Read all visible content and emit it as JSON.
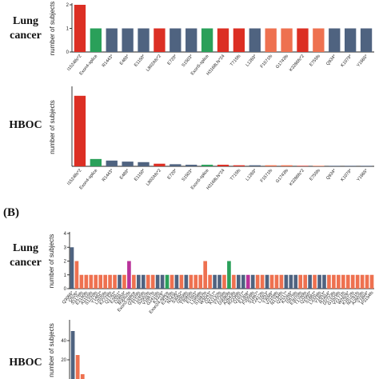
{
  "panel_b_label": "(B)",
  "colors": {
    "red": "#dc2f24",
    "green": "#2aa05a",
    "slate": "#4f6380",
    "orange": "#ee7150",
    "magenta": "#b9329a"
  },
  "chart_data": [
    {
      "type": "bar",
      "row_label": [
        "Lung",
        "cancer"
      ],
      "ylabel": "number of subjects",
      "ylim": [
        0,
        2
      ],
      "yticks": [
        "0",
        "1",
        "2"
      ],
      "categories": [
        "I1524lfs*2",
        "Exon4-splice",
        "R1443*",
        "E489*",
        "E1150*",
        "L802Afs*2",
        "E720*",
        "S1503*",
        "Exon5-splice",
        "H3168Lfs*24",
        "T715fs",
        "L1269*",
        "F1571fs",
        "G1743fs",
        "K3286fs*2",
        "E755fs",
        "Q934*",
        "K1079*",
        "Y1665*"
      ],
      "values": [
        2,
        1,
        1,
        1,
        1,
        1,
        1,
        1,
        1,
        1,
        1,
        1,
        1,
        1,
        1,
        1,
        1,
        1,
        1
      ],
      "colors": [
        "red",
        "green",
        "slate",
        "slate",
        "slate",
        "red",
        "slate",
        "slate",
        "green",
        "red",
        "red",
        "slate",
        "orange",
        "orange",
        "red",
        "orange",
        "slate",
        "slate",
        "slate"
      ]
    },
    {
      "type": "bar",
      "row_label": [
        "HBOC"
      ],
      "ylabel": "number of subjects",
      "ylim": [
        0,
        150
      ],
      "categories": [
        "I1524lfs*2",
        "Exon4-splice",
        "R1443*",
        "E489*",
        "E1150*",
        "L802Afs*2",
        "E720*",
        "S1503*",
        "Exon5-splice",
        "H3168Lfs*24",
        "T715fs",
        "L1269*",
        "F1571fs",
        "G1743fs",
        "K3286fs*2",
        "E755fs",
        "Q934*",
        "K1079*",
        "Y1665*"
      ],
      "values": [
        135,
        14,
        11,
        9,
        8,
        5,
        4,
        3,
        3,
        3,
        2,
        2,
        2,
        2,
        1,
        1,
        1,
        1,
        1
      ],
      "colors": [
        "red",
        "green",
        "slate",
        "slate",
        "slate",
        "red",
        "slate",
        "slate",
        "green",
        "red",
        "red",
        "slate",
        "orange",
        "orange",
        "red",
        "orange",
        "slate",
        "slate",
        "slate"
      ]
    },
    {
      "type": "bar",
      "row_label": [
        "Lung",
        "cancer"
      ],
      "ylabel": "number of subjects",
      "ylim": [
        0,
        4
      ],
      "yticks": [
        "0",
        "1",
        "2",
        "3",
        "4"
      ],
      "values": [
        3,
        2,
        1,
        1,
        1,
        1,
        1,
        1,
        1,
        1,
        1,
        1,
        2,
        1,
        1,
        1,
        1,
        1,
        1,
        1,
        1,
        1,
        1,
        1,
        1,
        1,
        1,
        1,
        2,
        1,
        1,
        1,
        1,
        2,
        1,
        1,
        1,
        1,
        1,
        1,
        1,
        1,
        1,
        1,
        1,
        1,
        1,
        1,
        1,
        1,
        1,
        1,
        1,
        1,
        1,
        1,
        1,
        1,
        1,
        1,
        1,
        1,
        1,
        1
      ],
      "colors": [
        "slate",
        "orange",
        "orange",
        "orange",
        "orange",
        "orange",
        "orange",
        "orange",
        "orange",
        "orange",
        "slate",
        "orange",
        "magenta",
        "orange",
        "slate",
        "slate",
        "orange",
        "orange",
        "slate",
        "slate",
        "green",
        "orange",
        "slate",
        "orange",
        "slate",
        "orange",
        "orange",
        "orange",
        "orange",
        "orange",
        "slate",
        "slate",
        "orange",
        "green",
        "orange",
        "slate",
        "slate",
        "magenta",
        "slate",
        "orange",
        "orange",
        "slate",
        "orange",
        "orange",
        "orange",
        "slate",
        "slate",
        "slate",
        "orange",
        "orange",
        "slate",
        "orange",
        "slate",
        "slate",
        "orange",
        "orange",
        "orange",
        "orange",
        "orange",
        "orange",
        "orange",
        "orange",
        "orange",
        "orange"
      ],
      "categories": [
        "Q3066*",
        "Q526*",
        "S1176fs",
        "E2190fs",
        "A1155fs",
        "S1220fs",
        "Y1482*",
        "L2020fs",
        "K2729fs",
        "Q1782*",
        "E2891*",
        "Q2859*",
        "R3052fs",
        "Exon3-splice",
        "Q3155fs",
        "T1245fs",
        "S2502fs",
        "V1887fs",
        "G2415fs",
        "K3326*",
        "Exon24-splice",
        "E2183fs",
        "N2436*",
        "S3062*",
        "I2058fs",
        "T3085fs",
        "E1593*",
        "L1908fs",
        "S1982fs",
        "W3043*",
        "Q2157*",
        "K1132fs",
        "Y2726fs",
        "D3080fs",
        "A2643fs",
        "R2336fs",
        "Q1037*",
        "E1308*",
        "F2058fs",
        "S1667*",
        "T2412fs",
        "L1053*",
        "Y3098*",
        "V2109fs",
        "N1784fs",
        "Q3217*",
        "K2268*",
        "I2675fs",
        "E3070fs",
        "T1700fs",
        "Q2560*",
        "S1882*",
        "L3326fs",
        "Y1853*",
        "R2494*",
        "D2723fs",
        "G1529fs",
        "V2171fs",
        "W2626*",
        "K1872fs",
        "N2781fs",
        "A2603fs",
        "Y1894*",
        "P3194fs"
      ]
    },
    {
      "type": "bar",
      "row_label": [
        "HBOC"
      ],
      "ylabel": "number of subjects",
      "ylim": [
        0,
        60
      ],
      "yticks": [
        "20",
        "40"
      ],
      "values": [
        50,
        25,
        5
      ],
      "colors": [
        "slate",
        "orange",
        "orange"
      ]
    }
  ]
}
